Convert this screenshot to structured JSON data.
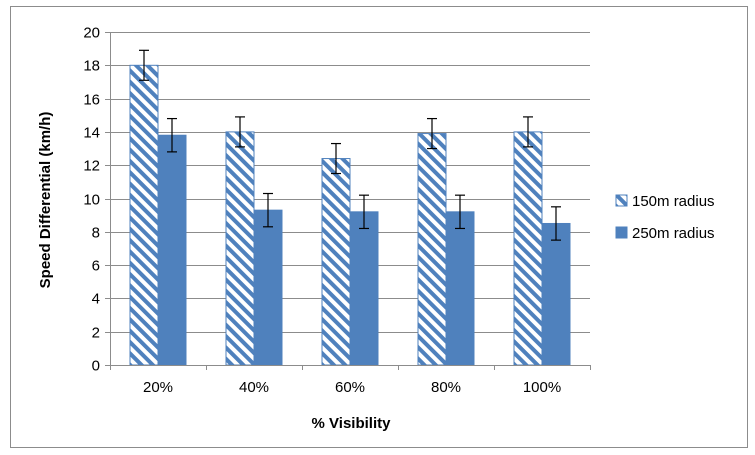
{
  "chart_data": {
    "type": "bar",
    "title": "",
    "xlabel": "% Visibility",
    "ylabel": "Speed Differential (km/h)",
    "categories": [
      "20%",
      "40%",
      "60%",
      "80%",
      "100%"
    ],
    "ylim": [
      0,
      20
    ],
    "yticks": [
      0,
      2,
      4,
      6,
      8,
      10,
      12,
      14,
      16,
      18,
      20
    ],
    "grid": true,
    "legend_position": "right",
    "series": [
      {
        "name": "150m radius",
        "values": [
          18.0,
          14.0,
          12.4,
          13.9,
          14.0
        ],
        "error": [
          0.9,
          0.9,
          0.9,
          0.9,
          0.9
        ],
        "fill": "hatched",
        "color": "#4F81BD"
      },
      {
        "name": "250m radius",
        "values": [
          13.8,
          9.3,
          9.2,
          9.2,
          8.5
        ],
        "error": [
          1.0,
          1.0,
          1.0,
          1.0,
          1.0
        ],
        "fill": "solid",
        "color": "#4F81BD"
      }
    ]
  }
}
